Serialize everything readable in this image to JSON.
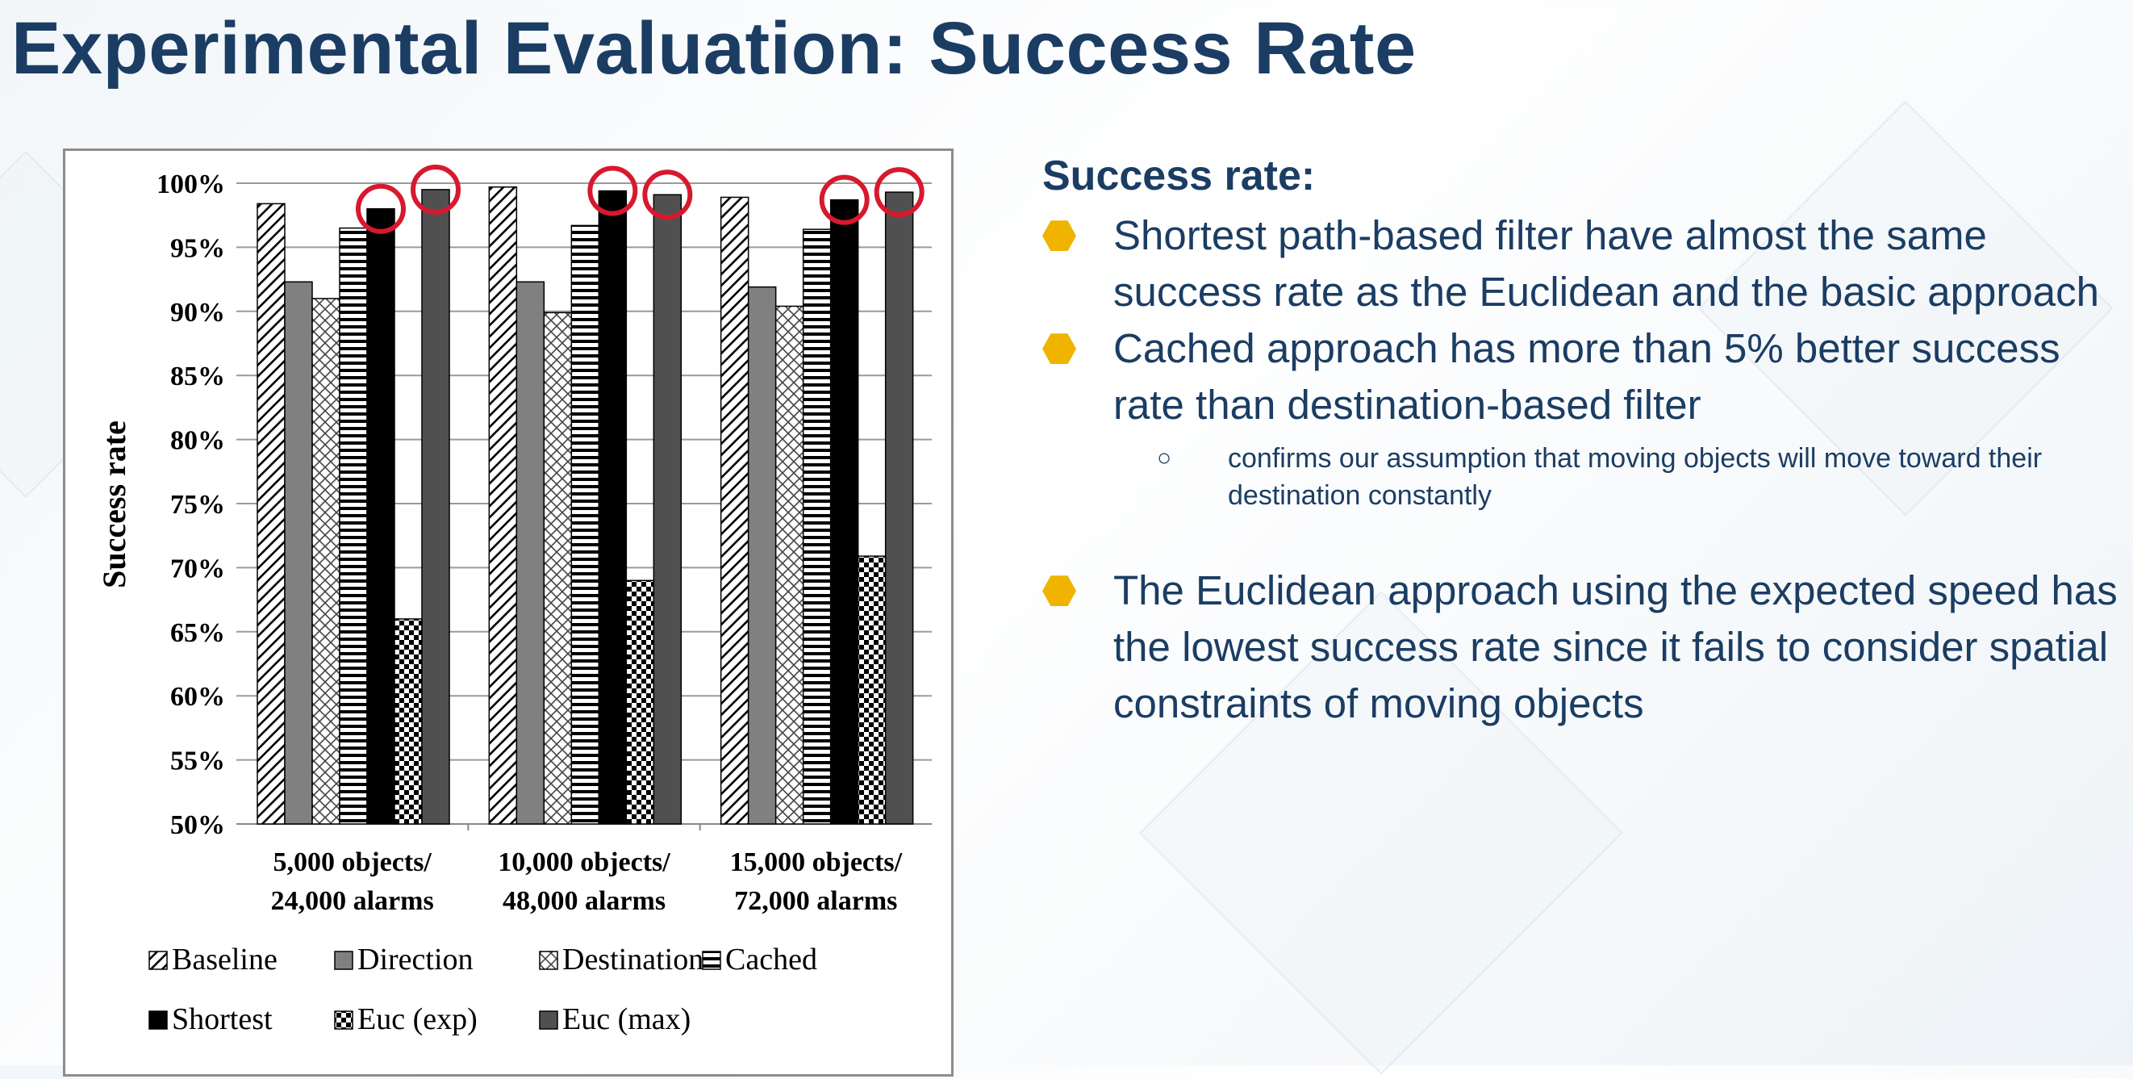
{
  "slide": {
    "title": "Experimental Evaluation: Success Rate"
  },
  "bullets": {
    "heading": "Success rate:",
    "items": [
      {
        "text": "Shortest path-based filter have almost the same success rate as the Euclidean and the basic approach",
        "subitems": []
      },
      {
        "text": "Cached approach has more than 5% better success rate than destination-based filter",
        "subitems": [
          "confirms our assumption that moving objects will move toward their destination constantly"
        ]
      },
      {
        "text": "The Euclidean approach using the expected speed has the lowest success rate since it fails to consider spatial constraints of moving objects",
        "subitems": []
      }
    ],
    "colors": {
      "text": "#1b3d63",
      "bullet": "#f0b400"
    }
  },
  "chart_data": {
    "type": "bar",
    "ylabel": "Success rate",
    "ylim": [
      50,
      100
    ],
    "yticks": [
      "50%",
      "55%",
      "60%",
      "65%",
      "70%",
      "75%",
      "80%",
      "85%",
      "90%",
      "95%",
      "100%"
    ],
    "categories": [
      [
        "5,000 objects/",
        "24,000 alarms"
      ],
      [
        "10,000 objects/",
        "48,000 alarms"
      ],
      [
        "15,000 objects/",
        "72,000 alarms"
      ]
    ],
    "series": [
      {
        "name": "Baseline",
        "values": [
          98.4,
          99.7,
          98.9
        ],
        "pattern": "diagonal"
      },
      {
        "name": "Direction",
        "values": [
          92.3,
          92.3,
          91.9
        ],
        "pattern": "solid-gray"
      },
      {
        "name": "Destination",
        "values": [
          91.0,
          89.9,
          90.4
        ],
        "pattern": "crosshatch"
      },
      {
        "name": "Cached",
        "values": [
          96.5,
          96.7,
          96.4
        ],
        "pattern": "horizontal"
      },
      {
        "name": "Shortest",
        "values": [
          98.0,
          99.4,
          98.7
        ],
        "pattern": "solid-black"
      },
      {
        "name": "Euc (exp)",
        "values": [
          66.0,
          69.0,
          70.9
        ],
        "pattern": "checker"
      },
      {
        "name": "Euc (max)",
        "values": [
          99.5,
          99.1,
          99.3
        ],
        "pattern": "solid-darkgray"
      }
    ],
    "highlighted_bars": [
      {
        "category": 0,
        "series": "Shortest"
      },
      {
        "category": 0,
        "series": "Euc (max)"
      },
      {
        "category": 1,
        "series": "Shortest"
      },
      {
        "category": 1,
        "series": "Euc (max)"
      },
      {
        "category": 2,
        "series": "Shortest"
      },
      {
        "category": 2,
        "series": "Euc (max)"
      }
    ],
    "highlight_color": "#d7192e",
    "grid": true,
    "legend": "bottom"
  }
}
